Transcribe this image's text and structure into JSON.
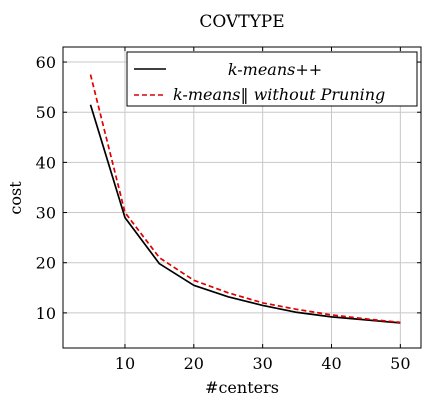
{
  "chart_data": {
    "type": "line",
    "title": "COVTYPE",
    "xlabel": "#centers",
    "ylabel": "cost",
    "xlim": [
      1,
      53
    ],
    "ylim": [
      3,
      63
    ],
    "xticks": [
      10,
      20,
      30,
      40,
      50
    ],
    "yticks": [
      10,
      20,
      30,
      40,
      50,
      60
    ],
    "grid": true,
    "legend_position": "top-right",
    "series": [
      {
        "name": "k-means++",
        "color": "#000000",
        "style": "solid",
        "x": [
          5,
          10,
          15,
          20,
          25,
          30,
          35,
          40,
          45,
          50
        ],
        "y": [
          51.5,
          29,
          19.8,
          15.5,
          13.2,
          11.5,
          10.1,
          9.2,
          8.6,
          8.0
        ]
      },
      {
        "name": "k-means‖ without Pruning",
        "color": "#e00000",
        "style": "dashed",
        "x": [
          5,
          10,
          15,
          20,
          25,
          30,
          35,
          40,
          45,
          50
        ],
        "y": [
          57.5,
          30,
          21,
          16.5,
          14,
          12,
          10.7,
          9.6,
          8.8,
          8.1
        ]
      }
    ]
  }
}
